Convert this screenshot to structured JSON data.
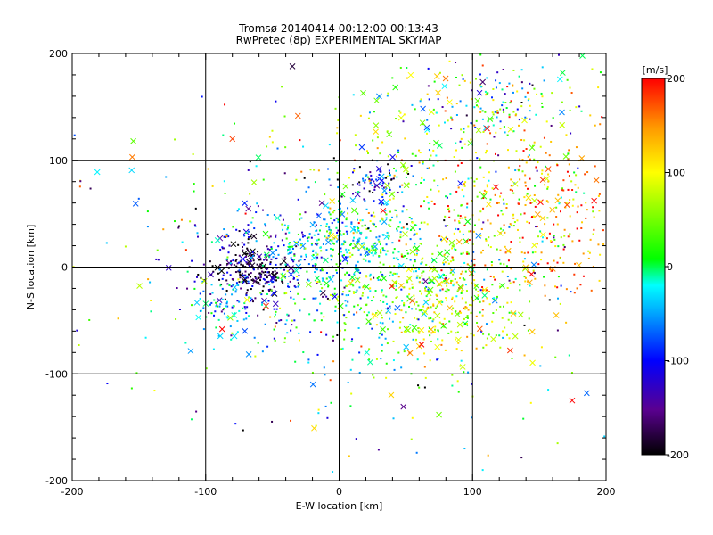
{
  "chart_data": {
    "type": "scatter",
    "title": "Tromsø 20140414 00:12:00-00:13:43",
    "subtitle": "RwPretec (8p) EXPERIMENTAL SKYMAP",
    "xlabel": "E-W location [km]",
    "ylabel": "N-S location [km]",
    "xlim": [
      -200,
      200
    ],
    "ylim": [
      -200,
      200
    ],
    "x_ticks": [
      -200,
      -100,
      0,
      100,
      200
    ],
    "y_ticks": [
      -200,
      -100,
      0,
      100,
      200
    ],
    "x_tick_labels": [
      "-200",
      "-100",
      "0",
      "100",
      "200"
    ],
    "y_tick_labels": [
      "-200",
      "-100",
      "0",
      "100",
      "200"
    ],
    "grid": true,
    "colorbar": {
      "label": "[m/s]",
      "range": [
        -200,
        200
      ],
      "ticks": [
        200,
        100,
        0,
        -100,
        -200
      ],
      "tick_labels": [
        "200",
        "100",
        "0",
        "-100",
        "-200"
      ],
      "colormap": [
        "#000000",
        "#5a0090",
        "#0000ff",
        "#00aaff",
        "#00ffff",
        "#00ff00",
        "#ffff00",
        "#ff9900",
        "#ff0000"
      ]
    },
    "clusters": [
      {
        "cx": -65,
        "cy": -3,
        "sx": 14,
        "sy": 12,
        "n": 160,
        "vmean": -190,
        "vsd": 20
      },
      {
        "cx": -60,
        "cy": -10,
        "sx": 30,
        "sy": 30,
        "n": 230,
        "vmean": -115,
        "vsd": 30
      },
      {
        "cx": -85,
        "cy": -40,
        "sx": 15,
        "sy": 14,
        "n": 60,
        "vmean": -40,
        "vsd": 30
      },
      {
        "cx": 0,
        "cy": 25,
        "sx": 30,
        "sy": 15,
        "n": 240,
        "vmean": -35,
        "vsd": 40
      },
      {
        "cx": 40,
        "cy": -15,
        "sx": 45,
        "sy": 40,
        "n": 550,
        "vmean": 20,
        "vsd": 55
      },
      {
        "cx": 30,
        "cy": 80,
        "sx": 12,
        "sy": 8,
        "n": 70,
        "vmean": -120,
        "vsd": 50
      },
      {
        "cx": 120,
        "cy": 150,
        "sx": 25,
        "sy": 20,
        "n": 130,
        "vmean": -10,
        "vsd": 90
      },
      {
        "cx": 140,
        "cy": 50,
        "sx": 40,
        "sy": 45,
        "n": 380,
        "vmean": 140,
        "vsd": 55
      },
      {
        "cx": 70,
        "cy": 100,
        "sx": 55,
        "sy": 40,
        "n": 200,
        "vmean": 50,
        "vsd": 60
      },
      {
        "cx": 80,
        "cy": -40,
        "sx": 30,
        "sy": 25,
        "n": 200,
        "vmean": 90,
        "vsd": 40
      },
      {
        "cx": 0,
        "cy": 0,
        "sx": 120,
        "sy": 110,
        "n": 360,
        "vmean": 0,
        "vsd": 110
      }
    ],
    "highlighted_crosses": [
      {
        "x": -80,
        "y": 120,
        "v": 180
      },
      {
        "x": -155,
        "y": 103,
        "v": 160
      },
      {
        "x": 30,
        "y": 160,
        "v": -60
      },
      {
        "x": -35,
        "y": 188,
        "v": -180
      },
      {
        "x": 18,
        "y": 163,
        "v": 40
      },
      {
        "x": -13,
        "y": 60,
        "v": -150
      }
    ]
  }
}
